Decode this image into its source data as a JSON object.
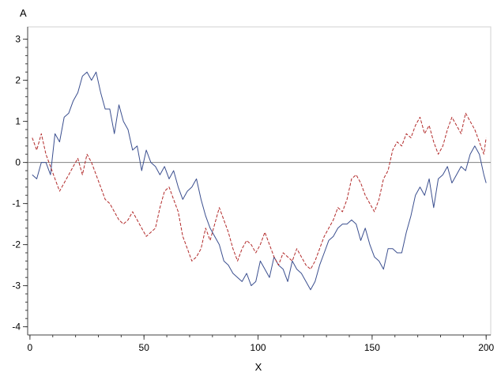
{
  "chart_data": {
    "type": "line",
    "title": "",
    "xlabel": "X",
    "ylabel": "A",
    "xlim": [
      -1,
      202
    ],
    "ylim": [
      -4.2,
      3.3
    ],
    "xticks": [
      0,
      50,
      100,
      150,
      200
    ],
    "yticks": [
      -4,
      -3,
      -2,
      -1,
      0,
      1,
      2,
      3
    ],
    "xtick_labels": [
      "0",
      "50",
      "100",
      "150",
      "200"
    ],
    "ytick_labels": [
      "-4",
      "-3",
      "-2",
      "-1",
      "0",
      "1",
      "2",
      "3"
    ],
    "reference_line": {
      "y": 0,
      "color": "#808080"
    },
    "grid": false,
    "legend": "none",
    "series": [
      {
        "style": "solid",
        "color": "#3b4f8f",
        "x": [
          1,
          3,
          5,
          7,
          9,
          11,
          13,
          15,
          17,
          19,
          21,
          23,
          25,
          27,
          29,
          31,
          33,
          35,
          37,
          39,
          41,
          43,
          45,
          47,
          49,
          51,
          53,
          55,
          57,
          59,
          61,
          63,
          65,
          67,
          69,
          71,
          73,
          75,
          77,
          79,
          81,
          83,
          85,
          87,
          89,
          91,
          93,
          95,
          97,
          99,
          101,
          103,
          105,
          107,
          109,
          111,
          113,
          115,
          117,
          119,
          121,
          123,
          125,
          127,
          129,
          131,
          133,
          135,
          137,
          139,
          141,
          143,
          145,
          147,
          149,
          151,
          153,
          155,
          157,
          159,
          161,
          163,
          165,
          167,
          169,
          171,
          173,
          175,
          177,
          179,
          181,
          183,
          185,
          187,
          189,
          191,
          193,
          195,
          197,
          199,
          200
        ],
        "y": [
          -0.3,
          -0.4,
          0.0,
          0.0,
          -0.3,
          0.7,
          0.5,
          1.1,
          1.2,
          1.5,
          1.7,
          2.1,
          2.2,
          2.0,
          2.2,
          1.7,
          1.3,
          1.3,
          0.7,
          1.4,
          1.0,
          0.8,
          0.3,
          0.4,
          -0.2,
          0.3,
          0.0,
          -0.1,
          -0.3,
          -0.1,
          -0.4,
          -0.2,
          -0.6,
          -0.9,
          -0.7,
          -0.6,
          -0.4,
          -0.9,
          -1.3,
          -1.6,
          -1.8,
          -2.0,
          -2.4,
          -2.5,
          -2.7,
          -2.8,
          -2.9,
          -2.7,
          -3.0,
          -2.9,
          -2.4,
          -2.6,
          -2.8,
          -2.3,
          -2.5,
          -2.6,
          -2.9,
          -2.4,
          -2.6,
          -2.7,
          -2.9,
          -3.1,
          -2.9,
          -2.5,
          -2.2,
          -1.9,
          -1.8,
          -1.6,
          -1.5,
          -1.5,
          -1.4,
          -1.5,
          -1.9,
          -1.6,
          -2.0,
          -2.3,
          -2.4,
          -2.6,
          -2.1,
          -2.1,
          -2.2,
          -2.2,
          -1.7,
          -1.3,
          -0.8,
          -0.6,
          -0.8,
          -0.4,
          -1.1,
          -0.4,
          -0.3,
          -0.1,
          -0.5,
          -0.3,
          -0.1,
          -0.2,
          0.2,
          0.4,
          0.2,
          -0.3,
          -0.5
        ]
      },
      {
        "style": "dashed",
        "color": "#b22a2a",
        "x": [
          1,
          3,
          5,
          7,
          9,
          11,
          13,
          15,
          17,
          19,
          21,
          23,
          25,
          27,
          29,
          31,
          33,
          35,
          37,
          39,
          41,
          43,
          45,
          47,
          49,
          51,
          53,
          55,
          57,
          59,
          61,
          63,
          65,
          67,
          69,
          71,
          73,
          75,
          77,
          79,
          81,
          83,
          85,
          87,
          89,
          91,
          93,
          95,
          97,
          99,
          101,
          103,
          105,
          107,
          109,
          111,
          113,
          115,
          117,
          119,
          121,
          123,
          125,
          127,
          129,
          131,
          133,
          135,
          137,
          139,
          141,
          143,
          145,
          147,
          149,
          151,
          153,
          155,
          157,
          159,
          161,
          163,
          165,
          167,
          169,
          171,
          173,
          175,
          177,
          179,
          181,
          183,
          185,
          187,
          189,
          191,
          193,
          195,
          197,
          199,
          200
        ],
        "y": [
          0.6,
          0.3,
          0.7,
          0.2,
          -0.1,
          -0.4,
          -0.7,
          -0.5,
          -0.3,
          -0.1,
          0.1,
          -0.3,
          0.2,
          0.0,
          -0.3,
          -0.6,
          -0.9,
          -1.0,
          -1.2,
          -1.4,
          -1.5,
          -1.4,
          -1.2,
          -1.4,
          -1.6,
          -1.8,
          -1.7,
          -1.6,
          -1.1,
          -0.7,
          -0.6,
          -0.9,
          -1.2,
          -1.8,
          -2.1,
          -2.4,
          -2.3,
          -2.1,
          -1.6,
          -1.9,
          -1.5,
          -1.1,
          -1.4,
          -1.7,
          -2.1,
          -2.4,
          -2.1,
          -1.9,
          -2.0,
          -2.2,
          -2.0,
          -1.7,
          -2.0,
          -2.3,
          -2.5,
          -2.2,
          -2.3,
          -2.4,
          -2.1,
          -2.3,
          -2.5,
          -2.6,
          -2.4,
          -2.1,
          -1.8,
          -1.6,
          -1.4,
          -1.1,
          -1.2,
          -0.9,
          -0.4,
          -0.3,
          -0.5,
          -0.8,
          -1.0,
          -1.2,
          -0.9,
          -0.4,
          -0.2,
          0.3,
          0.5,
          0.4,
          0.7,
          0.6,
          0.9,
          1.1,
          0.7,
          0.9,
          0.5,
          0.2,
          0.4,
          0.8,
          1.1,
          0.9,
          0.7,
          1.2,
          1.0,
          0.8,
          0.5,
          0.2,
          0.6
        ]
      }
    ]
  }
}
